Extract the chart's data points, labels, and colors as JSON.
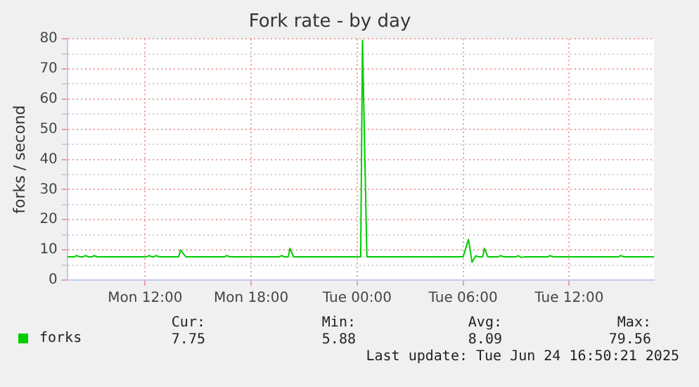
{
  "chart_data": {
    "type": "line",
    "title": "Fork rate - by day",
    "ylabel": "forks / second",
    "x": [
      "2025-06-23T07:36",
      "2025-06-23T08:00",
      "2025-06-23T08:06",
      "2025-06-23T08:18",
      "2025-06-23T08:30",
      "2025-06-23T08:36",
      "2025-06-23T08:48",
      "2025-06-23T09:00",
      "2025-06-23T09:06",
      "2025-06-23T09:18",
      "2025-06-23T12:06",
      "2025-06-23T12:12",
      "2025-06-23T12:24",
      "2025-06-23T12:30",
      "2025-06-23T12:36",
      "2025-06-23T12:48",
      "2025-06-23T13:54",
      "2025-06-23T14:00",
      "2025-06-23T14:18",
      "2025-06-23T16:30",
      "2025-06-23T16:36",
      "2025-06-23T16:48",
      "2025-06-23T19:36",
      "2025-06-23T19:42",
      "2025-06-23T19:54",
      "2025-06-23T20:06",
      "2025-06-23T20:12",
      "2025-06-23T20:24",
      "2025-06-24T00:12",
      "2025-06-24T00:18",
      "2025-06-24T00:33",
      "2025-06-24T06:00",
      "2025-06-24T06:18",
      "2025-06-24T06:30",
      "2025-06-24T06:42",
      "2025-06-24T06:54",
      "2025-06-24T07:06",
      "2025-06-24T07:12",
      "2025-06-24T07:24",
      "2025-06-24T08:00",
      "2025-06-24T08:06",
      "2025-06-24T08:18",
      "2025-06-24T09:00",
      "2025-06-24T09:06",
      "2025-06-24T09:18",
      "2025-06-24T09:30",
      "2025-06-24T10:48",
      "2025-06-24T10:54",
      "2025-06-24T11:06",
      "2025-06-24T14:48",
      "2025-06-24T14:54",
      "2025-06-24T15:06",
      "2025-06-24T16:48"
    ],
    "series": [
      {
        "name": "forks",
        "color": "#00cc00",
        "values": [
          7.7,
          7.7,
          8.1,
          7.7,
          7.7,
          8.1,
          7.7,
          7.7,
          8.1,
          7.7,
          7.7,
          8.1,
          7.7,
          7.7,
          8.1,
          7.7,
          7.7,
          10,
          7.7,
          7.7,
          8.1,
          7.7,
          7.7,
          8.1,
          7.7,
          7.7,
          10.5,
          7.7,
          7.7,
          79.5,
          7.7,
          7.7,
          13.5,
          5.9,
          8.0,
          7.7,
          7.7,
          10.5,
          7.7,
          7.7,
          8.1,
          7.7,
          7.7,
          8.1,
          7.5,
          7.7,
          7.7,
          8.1,
          7.7,
          7.7,
          8.1,
          7.7,
          7.7
        ]
      }
    ],
    "xlim": [
      "2025-06-23T07:36",
      "2025-06-24T16:48"
    ],
    "xticks": [
      {
        "value": "2025-06-23T12:00",
        "label": "Mon 12:00"
      },
      {
        "value": "2025-06-23T18:00",
        "label": "Mon 18:00"
      },
      {
        "value": "2025-06-24T00:00",
        "label": "Tue 00:00"
      },
      {
        "value": "2025-06-24T06:00",
        "label": "Tue 06:00"
      },
      {
        "value": "2025-06-24T12:00",
        "label": "Tue 12:00"
      }
    ],
    "ylim": [
      0,
      80
    ],
    "yticks": [
      0,
      {
        "value": 5,
        "label": null
      },
      10,
      {
        "value": 15,
        "label": null
      },
      20,
      {
        "value": 25,
        "label": null
      },
      30,
      {
        "value": 35,
        "label": null
      },
      40,
      {
        "value": 45,
        "label": null
      },
      50,
      {
        "value": 55,
        "label": null
      },
      60,
      {
        "value": 65,
        "label": null
      },
      70,
      {
        "value": 75,
        "label": null
      },
      80
    ],
    "grid": true,
    "legend": "bottom left",
    "marker": "none",
    "line_style": "solid",
    "annotations": [
      "Cur:",
      "Min:",
      "Avg:",
      "Max:",
      "7.75",
      "5.88",
      "8.09",
      "79.56",
      "Last update: Tue Jun 24 16:50:21 2025"
    ]
  }
}
